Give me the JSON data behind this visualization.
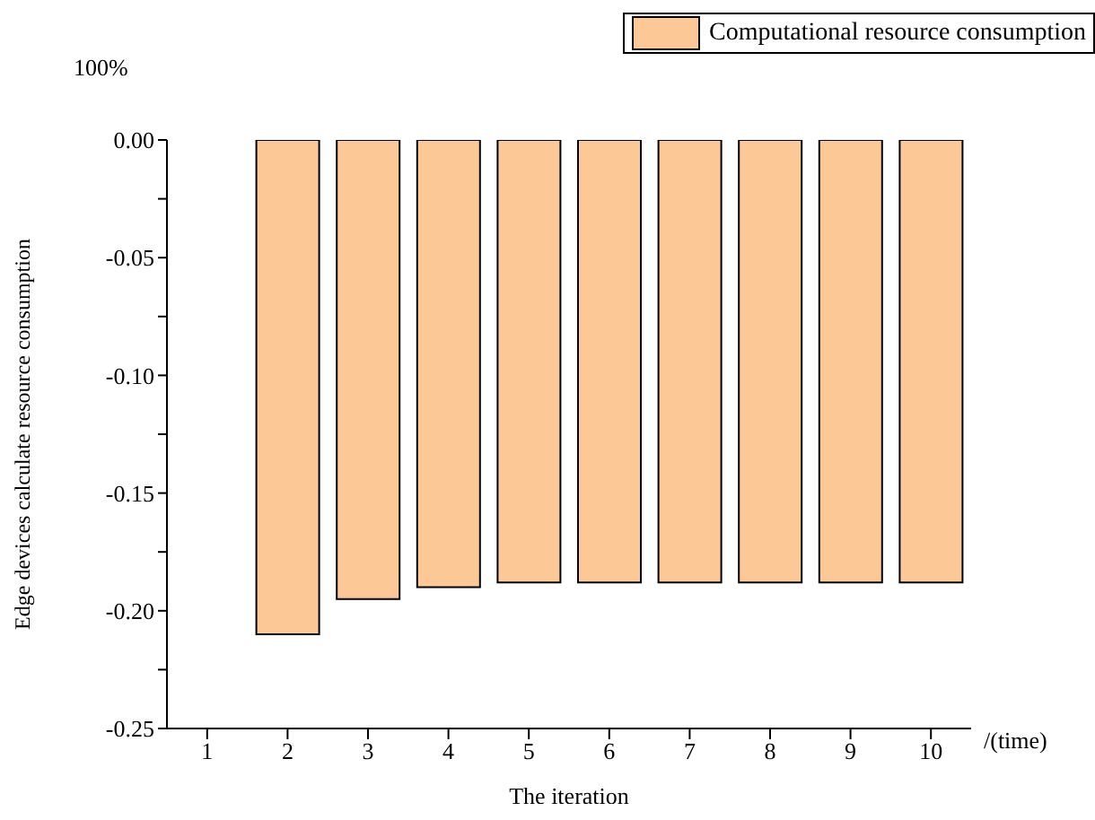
{
  "chart_data": {
    "type": "bar",
    "xlabel": "The iteration",
    "ylabel": "Edge devices calculate resource consumption",
    "annotations": [
      "100%",
      "/(time)"
    ],
    "categories": [
      "1",
      "2",
      "3",
      "4",
      "5",
      "6",
      "7",
      "8",
      "9",
      "10"
    ],
    "series": [
      {
        "name": "Computational resource consumption",
        "color": "#fcc896",
        "values": [
          0,
          -0.21,
          -0.195,
          -0.19,
          -0.188,
          -0.188,
          -0.188,
          -0.188,
          -0.188,
          -0.188
        ]
      }
    ],
    "ylim": [
      -0.25,
      0
    ],
    "yticks": [
      {
        "value": -0.25,
        "label": "-0.25"
      },
      {
        "value": -0.225,
        "label": null
      },
      {
        "value": -0.2,
        "label": "-0.20"
      },
      {
        "value": -0.175,
        "label": null
      },
      {
        "value": -0.15,
        "label": "-0.15"
      },
      {
        "value": -0.125,
        "label": null
      },
      {
        "value": -0.1,
        "label": "-0.10"
      },
      {
        "value": -0.075,
        "label": null
      },
      {
        "value": -0.05,
        "label": "-0.05"
      },
      {
        "value": -0.025,
        "label": null
      },
      {
        "value": 0,
        "label": "0.00"
      }
    ],
    "legend": "top right"
  }
}
